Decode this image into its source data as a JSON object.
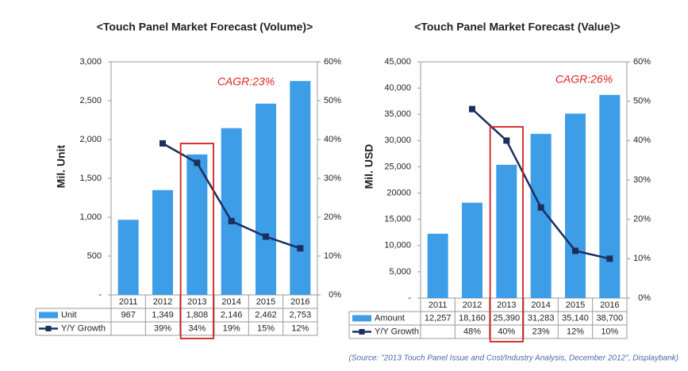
{
  "chart_data": [
    {
      "type": "bar",
      "title": "<Touch Panel Market Forecast (Volume)>",
      "ylabel": "Mil. Unit",
      "annotation": "CAGR:23%",
      "highlight": "2013",
      "categories": [
        "2011",
        "2012",
        "2013",
        "2014",
        "2015",
        "2016"
      ],
      "series": [
        {
          "name": "Unit",
          "type": "bar",
          "color": "#3d9de6",
          "values": [
            967,
            1349,
            1808,
            2146,
            2462,
            2753
          ],
          "value_labels": [
            "967",
            "1,349",
            "1,808",
            "2,146",
            "2,462",
            "2,753"
          ]
        },
        {
          "name": "Y/Y Growth",
          "type": "line",
          "axis": "y2",
          "color": "#1b2f5e",
          "values": [
            null,
            39,
            34,
            19,
            15,
            12
          ],
          "value_labels": [
            null,
            "39%",
            "34%",
            "19%",
            "15%",
            "12%"
          ]
        }
      ],
      "ylim": [
        0,
        3000
      ],
      "yticks": [
        {
          "value": 0,
          "label": "-"
        },
        500,
        {
          "value": 1000,
          "label": "1,000"
        },
        {
          "value": 1500,
          "label": "1,500"
        },
        {
          "value": 2000,
          "label": "2,000"
        },
        {
          "value": 2500,
          "label": "2,500"
        },
        {
          "value": 3000,
          "label": "3,000"
        }
      ],
      "y2lim": [
        0,
        60
      ],
      "y2ticks": [
        {
          "value": 0,
          "label": "0%"
        },
        {
          "value": 10,
          "label": "10%"
        },
        {
          "value": 20,
          "label": "20%"
        },
        {
          "value": 30,
          "label": "30%"
        },
        {
          "value": 40,
          "label": "40%"
        },
        {
          "value": 50,
          "label": "50%"
        },
        {
          "value": 60,
          "label": "60%"
        }
      ],
      "grid": false
    },
    {
      "type": "bar",
      "title": "<Touch Panel Market Forecast (Value)>",
      "ylabel": "Mil. USD",
      "annotation": "CAGR:26%",
      "highlight": "2013",
      "categories": [
        "2011",
        "2012",
        "2013",
        "2014",
        "2015",
        "2016"
      ],
      "series": [
        {
          "name": "Amount",
          "type": "bar",
          "color": "#3d9de6",
          "values": [
            12257,
            18160,
            25390,
            31283,
            35140,
            38700
          ],
          "value_labels": [
            "12,257",
            "18,160",
            "25,390",
            "31,283",
            "35,140",
            "38,700"
          ]
        },
        {
          "name": "Y/Y Growth",
          "type": "line",
          "axis": "y2",
          "color": "#1b2f5e",
          "values": [
            null,
            48,
            40,
            23,
            12,
            10
          ],
          "value_labels": [
            null,
            "48%",
            "40%",
            "23%",
            "12%",
            "10%"
          ]
        }
      ],
      "ylim": [
        0,
        45000
      ],
      "yticks": [
        {
          "value": 0,
          "label": "-"
        },
        {
          "value": 5000,
          "label": "5,000"
        },
        {
          "value": 10000,
          "label": "10,000"
        },
        {
          "value": 15000,
          "label": "15,000"
        },
        20000,
        {
          "value": 25000,
          "label": "25,000"
        },
        {
          "value": 30000,
          "label": "30,000"
        },
        {
          "value": 35000,
          "label": "35,000"
        },
        {
          "value": 40000,
          "label": "40,000"
        },
        {
          "value": 45000,
          "label": "45,000"
        }
      ],
      "y2lim": [
        0,
        60
      ],
      "y2ticks": [
        {
          "value": 0,
          "label": "0%"
        },
        {
          "value": 10,
          "label": "10%"
        },
        {
          "value": 20,
          "label": "20%"
        },
        {
          "value": 30,
          "label": "30%"
        },
        {
          "value": 40,
          "label": "40%"
        },
        {
          "value": 50,
          "label": "50%"
        },
        {
          "value": 60,
          "label": "60%"
        }
      ],
      "grid": false
    }
  ],
  "source": "(Source: \"2013 Touch Panel Issue and Cost/Industry Analysis, December 2012\", Displaybank)"
}
